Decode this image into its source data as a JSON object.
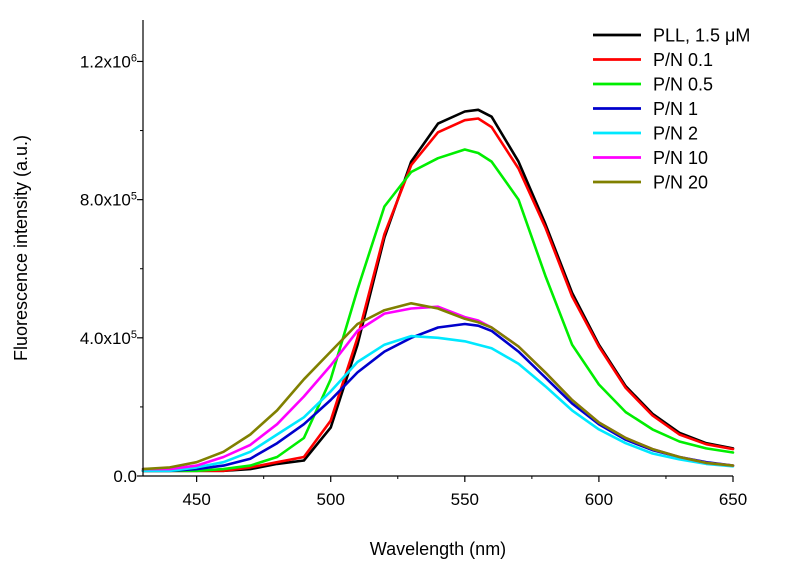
{
  "chart_data": {
    "type": "line",
    "title": "",
    "xlabel": "Wavelength (nm)",
    "ylabel": "Fluorescence intensity (a.u.)",
    "xlim": [
      430,
      650
    ],
    "ylim": [
      0,
      1200000
    ],
    "x_ticks": [
      450,
      500,
      550,
      600,
      650
    ],
    "x_tick_labels": [
      "450",
      "500",
      "550",
      "600",
      "650"
    ],
    "y_ticks": [
      0,
      400000,
      800000,
      1200000
    ],
    "y_tick_labels": [
      {
        "mant": "0.0",
        "exp": ""
      },
      {
        "mant": "4.0x10",
        "exp": "5"
      },
      {
        "mant": "8.0x10",
        "exp": "5"
      },
      {
        "mant": "1.2x10",
        "exp": "6"
      }
    ],
    "grid": false,
    "legend_position": "top-right",
    "x": [
      430,
      440,
      450,
      460,
      470,
      480,
      490,
      500,
      510,
      520,
      530,
      540,
      550,
      555,
      560,
      570,
      580,
      590,
      600,
      610,
      620,
      630,
      640,
      650
    ],
    "series": [
      {
        "name": "PLL, 1.5 μM",
        "color": "#000000",
        "values": [
          15000,
          15000,
          15000,
          15000,
          20000,
          35000,
          45000,
          140000,
          380000,
          690000,
          910000,
          1020000,
          1055000,
          1060000,
          1040000,
          910000,
          730000,
          530000,
          380000,
          260000,
          180000,
          125000,
          95000,
          80000
        ]
      },
      {
        "name": "P/N 0.1",
        "color": "#ff0000",
        "values": [
          15000,
          15000,
          15000,
          15000,
          25000,
          40000,
          55000,
          160000,
          400000,
          700000,
          900000,
          995000,
          1030000,
          1035000,
          1010000,
          890000,
          720000,
          520000,
          375000,
          255000,
          175000,
          120000,
          92000,
          78000
        ]
      },
      {
        "name": "P/N 0.5",
        "color": "#00ee00",
        "values": [
          15000,
          15000,
          15000,
          20000,
          30000,
          55000,
          110000,
          280000,
          540000,
          780000,
          880000,
          920000,
          945000,
          935000,
          910000,
          800000,
          580000,
          380000,
          265000,
          185000,
          135000,
          100000,
          80000,
          68000
        ]
      },
      {
        "name": "P/N 1",
        "color": "#0000cc",
        "values": [
          15000,
          15000,
          20000,
          30000,
          50000,
          95000,
          150000,
          220000,
          300000,
          360000,
          400000,
          430000,
          440000,
          435000,
          420000,
          360000,
          285000,
          210000,
          150000,
          105000,
          75000,
          55000,
          40000,
          30000
        ]
      },
      {
        "name": "P/N 2",
        "color": "#00e8ff",
        "values": [
          15000,
          15000,
          25000,
          40000,
          70000,
          120000,
          170000,
          245000,
          330000,
          380000,
          405000,
          400000,
          390000,
          380000,
          370000,
          325000,
          260000,
          190000,
          135000,
          95000,
          65000,
          48000,
          35000,
          28000
        ]
      },
      {
        "name": "P/N 10",
        "color": "#ff00ff",
        "values": [
          20000,
          20000,
          30000,
          55000,
          90000,
          150000,
          230000,
          320000,
          420000,
          470000,
          485000,
          490000,
          460000,
          450000,
          430000,
          375000,
          300000,
          220000,
          155000,
          110000,
          78000,
          55000,
          38000,
          30000
        ]
      },
      {
        "name": "P/N 20",
        "color": "#808000",
        "values": [
          20000,
          25000,
          40000,
          70000,
          120000,
          190000,
          280000,
          360000,
          440000,
          480000,
          500000,
          485000,
          455000,
          445000,
          430000,
          375000,
          300000,
          220000,
          155000,
          110000,
          78000,
          55000,
          38000,
          30000
        ]
      }
    ]
  }
}
